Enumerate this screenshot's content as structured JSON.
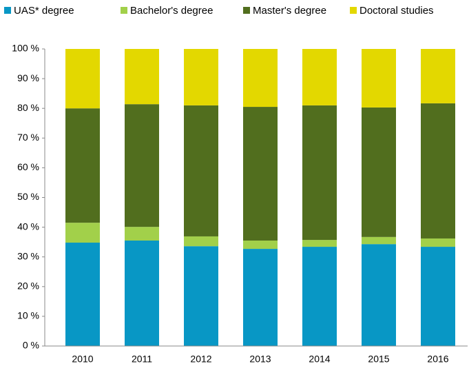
{
  "chart_data": {
    "type": "stacked_bar",
    "categories": [
      "2010",
      "2011",
      "2012",
      "2013",
      "2014",
      "2015",
      "2016"
    ],
    "series": [
      {
        "name": "UAS* degree",
        "color": "#0897c5",
        "values": [
          34.8,
          35.5,
          33.6,
          32.7,
          33.4,
          34.3,
          33.4
        ]
      },
      {
        "name": "Bachelor's degree",
        "color": "#a2d04a",
        "values": [
          6.7,
          4.6,
          3.3,
          2.8,
          2.3,
          2.4,
          2.8
        ]
      },
      {
        "name": "Master's degree",
        "color": "#516e1e",
        "values": [
          38.5,
          41.3,
          44.1,
          45.0,
          45.3,
          43.6,
          45.5
        ]
      },
      {
        "name": "Doctoral studies",
        "color": "#e3d800",
        "values": [
          20.0,
          18.6,
          19.0,
          19.5,
          19.0,
          19.7,
          18.3
        ]
      }
    ],
    "ylim": [
      0,
      100
    ],
    "yticks": [
      {
        "value": 0,
        "label": "0 %"
      },
      {
        "value": 10,
        "label": "10 %"
      },
      {
        "value": 20,
        "label": "20 %"
      },
      {
        "value": 30,
        "label": "30 %"
      },
      {
        "value": 40,
        "label": "40 %"
      },
      {
        "value": 50,
        "label": "50 %"
      },
      {
        "value": 60,
        "label": "60 %"
      },
      {
        "value": 70,
        "label": "70 %"
      },
      {
        "value": 80,
        "label": "80 %"
      },
      {
        "value": 90,
        "label": "90 %"
      },
      {
        "value": 100,
        "label": "100 %"
      }
    ],
    "legend": "top"
  }
}
